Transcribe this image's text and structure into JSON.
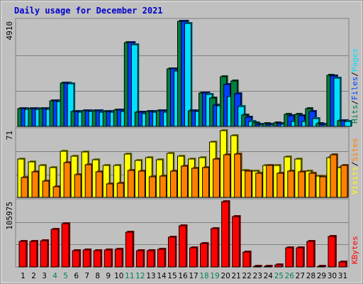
{
  "chart_data": {
    "type": "bar",
    "title": "Daily usage for December 2021",
    "categories": [
      "1",
      "2",
      "3",
      "4",
      "5",
      "6",
      "7",
      "8",
      "9",
      "10",
      "11",
      "12",
      "13",
      "14",
      "15",
      "16",
      "17",
      "18",
      "19",
      "20",
      "21",
      "22",
      "23",
      "24",
      "25",
      "26",
      "27",
      "28",
      "29",
      "30",
      "31"
    ],
    "weekend_days": [
      "4",
      "5",
      "11",
      "12",
      "18",
      "19",
      "25",
      "26"
    ],
    "grid": true,
    "panels": [
      {
        "ymax_label": "4910",
        "ylim": [
          0,
          4910
        ],
        "legend": [
          {
            "text": "Hits",
            "color": "#008040"
          },
          {
            "text": "/",
            "color": "#000000"
          },
          {
            "text": "Files",
            "color": "#0040ff"
          },
          {
            "text": "/",
            "color": "#000000"
          },
          {
            "text": "Pages",
            "color": "#00e0ff"
          }
        ],
        "series": [
          {
            "name": "Hits",
            "color": "#008040",
            "values": [
              820,
              820,
              840,
              1210,
              2040,
              700,
              730,
              720,
              700,
              750,
              3900,
              650,
              700,
              720,
              2690,
              4910,
              730,
              1550,
              1330,
              2330,
              2120,
              520,
              160,
              140,
              160,
              580,
              560,
              830,
              130,
              2400,
              270
            ]
          },
          {
            "name": "Files",
            "color": "#0040ff",
            "values": [
              820,
              820,
              840,
              1210,
              2040,
              700,
              730,
              720,
              700,
              750,
              3900,
              650,
              700,
              720,
              2690,
              4910,
              730,
              1550,
              1000,
              1950,
              1510,
              440,
              110,
              100,
              140,
              510,
              510,
              700,
              90,
              2370,
              250
            ]
          },
          {
            "name": "Pages",
            "color": "#00e0ff",
            "values": [
              780,
              780,
              800,
              1170,
              1980,
              660,
              700,
              680,
              670,
              700,
              3800,
              610,
              660,
              680,
              2600,
              4820,
              690,
              1480,
              960,
              1380,
              930,
              230,
              80,
              70,
              90,
              220,
              220,
              370,
              50,
              2270,
              230
            ]
          }
        ]
      },
      {
        "ymax_label": "71",
        "ylim": [
          0,
          71
        ],
        "legend": [
          {
            "text": "Visits",
            "color": "#ffff00"
          },
          {
            "text": "/",
            "color": "#000000"
          },
          {
            "text": "Sites",
            "color": "#ff8000"
          }
        ],
        "series": [
          {
            "name": "Visits",
            "color": "#ffff00",
            "values": [
              41,
              38,
              34,
              32,
              49,
              44,
              48,
              40,
              34,
              34,
              46,
              39,
              42,
              40,
              47,
              44,
              41,
              42,
              59,
              71,
              66,
              29,
              28,
              34,
              34,
              43,
              41,
              28,
              23,
              42,
              32
            ]
          },
          {
            "name": "Sites",
            "color": "#ff8000",
            "values": [
              21,
              27,
              17,
              11,
              37,
              24,
              35,
              27,
              14,
              15,
              29,
              28,
              22,
              23,
              28,
              33,
              31,
              32,
              41,
              45,
              46,
              28,
              26,
              34,
              26,
              28,
              27,
              26,
              22,
              45,
              34
            ]
          }
        ]
      },
      {
        "ymax_label": "105975",
        "ylim": [
          0,
          105975
        ],
        "legend": [
          {
            "text": "KBytes",
            "color": "#ff0000"
          }
        ],
        "series": [
          {
            "name": "KBytes",
            "color": "#ff0000",
            "values": [
              42000,
              42000,
              43000,
              61000,
              70000,
              27000,
              28000,
              27000,
              28000,
              29000,
              56000,
              27000,
              27000,
              29000,
              48000,
              67000,
              31000,
              38000,
              62000,
              105975,
              82000,
              24000,
              1500,
              1500,
              3500,
              31000,
              31000,
              41000,
              1500,
              49000,
              7500
            ]
          }
        ]
      }
    ]
  },
  "colors": {
    "background": "#c0c0c0",
    "frame": "#a0a0a0",
    "title": "#0000cc",
    "weekday_label": "#000000",
    "weekend_label": "#00805c"
  }
}
